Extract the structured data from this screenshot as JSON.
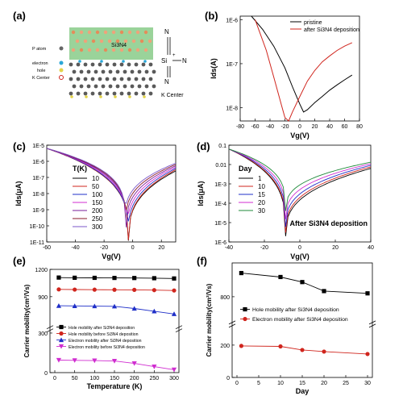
{
  "colors": {
    "black": "#000000",
    "red": "#d0251d",
    "blue": "#1f2fc8",
    "magenta": "#d02dd0",
    "green": "#1f8a3a",
    "purple": "#7a1f9a",
    "violet": "#7b57c9",
    "darkred": "#8a1a2a",
    "crystal": "#9ad39a"
  },
  "panel_a": {
    "label": "(a)",
    "layer_label": "Si3N4",
    "legend": [
      "P atom",
      "electron",
      "hole",
      "K Center"
    ],
    "k_center_label": "K Center",
    "defect_atoms": [
      "N",
      "N",
      "N",
      "Si",
      "+"
    ]
  },
  "chart_data": [
    {
      "id": "b",
      "panel": "(b)",
      "type": "line",
      "yscale": "log",
      "xlabel": "Vg(V)",
      "ylabel": "Ids(A)",
      "xlim": [
        -80,
        80
      ],
      "ylim": [
        5e-09,
        1.2e-06
      ],
      "xticks": [
        -80,
        -60,
        -40,
        -20,
        0,
        20,
        40,
        60,
        80
      ],
      "yticks": [
        {
          "v": 1e-06,
          "t": "1E-6"
        },
        {
          "v": 1e-07,
          "t": "1E-7"
        },
        {
          "v": 1e-08,
          "t": "1E-8"
        }
      ],
      "legend": "top-right",
      "series": [
        {
          "name": "pristine",
          "color": "#000000",
          "x": [
            -65,
            -50,
            -35,
            -20,
            -10,
            0,
            5,
            10,
            20,
            30,
            40,
            50,
            60,
            70
          ],
          "y": [
            1.2e-06,
            6e-07,
            2.5e-07,
            8e-08,
            3e-08,
            1.2e-08,
            8e-09,
            9e-09,
            1.3e-08,
            1.8e-08,
            2.5e-08,
            3.3e-08,
            4.3e-08,
            5.5e-08
          ]
        },
        {
          "name": "after Si3N4 deposition",
          "color": "#d0251d",
          "x": [
            -60,
            -45,
            -35,
            -25,
            -20,
            -15,
            -10,
            0,
            10,
            20,
            30,
            40,
            50,
            60,
            70
          ],
          "y": [
            1e-06,
            2e-07,
            5e-08,
            1.2e-08,
            6e-09,
            5e-09,
            8e-09,
            1.8e-08,
            4e-08,
            7e-08,
            1.1e-07,
            1.5e-07,
            2e-07,
            2.5e-07,
            3e-07
          ]
        }
      ]
    },
    {
      "id": "c",
      "panel": "(c)",
      "type": "line",
      "yscale": "log",
      "xlabel": "Vg(V)",
      "ylabel": "Ids(μA)",
      "xlim": [
        -60,
        30
      ],
      "ylim": [
        1e-11,
        1e-05
      ],
      "xticks": [
        -60,
        -40,
        -20,
        0,
        20
      ],
      "yticks": [
        {
          "v": 1e-05,
          "t": "1E-5"
        },
        {
          "v": 1e-06,
          "t": "1E-6"
        },
        {
          "v": 1e-07,
          "t": "1E-7"
        },
        {
          "v": 1e-08,
          "t": "1E-8"
        },
        {
          "v": 1e-09,
          "t": "1E-9"
        },
        {
          "v": 1e-10,
          "t": "1E-10"
        },
        {
          "v": 1e-11,
          "t": "1E-11"
        }
      ],
      "legend_title": "T(K)",
      "legend": "middle-left",
      "series": [
        {
          "name": "10",
          "color": "#000000",
          "vmin": -3.0,
          "depth": 1.2e-11
        },
        {
          "name": "50",
          "color": "#d0251d",
          "vmin": -3.0,
          "depth": 1.3e-11
        },
        {
          "name": "100",
          "color": "#1f2fc8",
          "vmin": -3.5,
          "depth": 2e-11
        },
        {
          "name": "150",
          "color": "#d02dd0",
          "vmin": -4.0,
          "depth": 4e-11
        },
        {
          "name": "200",
          "color": "#7a1f9a",
          "vmin": -4.5,
          "depth": 8e-11
        },
        {
          "name": "250",
          "color": "#8a1a2a",
          "vmin": -5.0,
          "depth": 1.5e-10
        },
        {
          "name": "300",
          "color": "#7b57c9",
          "vmin": -5.5,
          "depth": 2.5e-10
        }
      ]
    },
    {
      "id": "d",
      "panel": "(d)",
      "type": "line",
      "yscale": "log",
      "xlabel": "Vg(V)",
      "ylabel": "Ids(μA)",
      "xlim": [
        -40,
        40
      ],
      "ylim": [
        1e-06,
        0.1
      ],
      "xticks": [
        -40,
        -20,
        0,
        20,
        40
      ],
      "yticks": [
        {
          "v": 0.1,
          "t": "0.1"
        },
        {
          "v": 0.01,
          "t": "0.01"
        },
        {
          "v": 0.001,
          "t": "1E-3"
        },
        {
          "v": 0.0001,
          "t": "1E-4"
        },
        {
          "v": 1e-05,
          "t": "1E-5"
        },
        {
          "v": 1e-06,
          "t": "1E-6"
        }
      ],
      "legend_title": "Day",
      "legend": "middle-left",
      "annotation": "After Si3N4 deposition",
      "series": [
        {
          "name": "1",
          "color": "#000000",
          "vmin": -8,
          "depth": 2e-06
        },
        {
          "name": "10",
          "color": "#d0251d",
          "vmin": -8,
          "depth": 3e-06
        },
        {
          "name": "15",
          "color": "#1f2fc8",
          "vmin": -8,
          "depth": 6e-06
        },
        {
          "name": "20",
          "color": "#d02dd0",
          "vmin": -8,
          "depth": 1.5e-05
        },
        {
          "name": "30",
          "color": "#1f8a3a",
          "vmin": -8,
          "depth": 4e-05
        }
      ]
    },
    {
      "id": "e",
      "panel": "(e)",
      "type": "line",
      "xlabel": "Temperature (K)",
      "ylabel": "Carrier mobility(cm²/Vs)",
      "xlim": [
        0,
        300
      ],
      "xticks": [
        0,
        50,
        100,
        150,
        200,
        250,
        300
      ],
      "yticks_top": [
        {
          "v": 1200,
          "t": "1200"
        },
        {
          "v": 900,
          "t": "900"
        }
      ],
      "yticks_bottom": [
        {
          "v": 300,
          "t": "300"
        },
        {
          "v": 0,
          "t": "0"
        }
      ],
      "legend": "lower-left",
      "series": [
        {
          "name": "Hole mobility after Si3N4 deposition",
          "color": "#000000",
          "marker": "square",
          "x": [
            10,
            50,
            100,
            150,
            200,
            250,
            300
          ],
          "y": [
            1110,
            1108,
            1107,
            1106,
            1105,
            1103,
            1100
          ]
        },
        {
          "name": "Hole mobility before Si3N4 deposition",
          "color": "#d0251d",
          "marker": "circle",
          "x": [
            10,
            50,
            100,
            150,
            200,
            250,
            300
          ],
          "y": [
            980,
            978,
            977,
            976,
            975,
            972,
            968
          ]
        },
        {
          "name": "Electron mobility after Si3N4 deposition",
          "color": "#1f2fc8",
          "marker": "triangle-up",
          "x": [
            10,
            50,
            100,
            150,
            200,
            250,
            300
          ],
          "y": [
            800,
            798,
            796,
            794,
            770,
            740,
            710
          ]
        },
        {
          "name": "Electron mobility before Si3N4 deposition",
          "color": "#d02dd0",
          "marker": "triangle-down",
          "x": [
            10,
            50,
            100,
            150,
            200,
            250,
            300
          ],
          "y": [
            95,
            93,
            91,
            88,
            70,
            45,
            22
          ]
        }
      ]
    },
    {
      "id": "f",
      "panel": "(f)",
      "type": "line",
      "xlabel": "Day",
      "ylabel": "Carrier mobility(cm²/Vs)",
      "xlim": [
        0,
        30
      ],
      "xticks": [
        0,
        5,
        10,
        15,
        20,
        25,
        30
      ],
      "yticks_top": [
        {
          "v": 800,
          "t": "800"
        }
      ],
      "yticks_bottom": [
        {
          "v": 200,
          "t": "200"
        },
        {
          "v": 0,
          "t": "0"
        }
      ],
      "legend": "middle",
      "series": [
        {
          "name": "Hole mobility after Si3N4 deposition",
          "color": "#000000",
          "marker": "square",
          "x": [
            1,
            10,
            15,
            20,
            30
          ],
          "y": [
            1010,
            975,
            930,
            850,
            830
          ]
        },
        {
          "name": "Electron mobility after Si3N4 deposition",
          "color": "#d0251d",
          "marker": "circle",
          "x": [
            1,
            10,
            15,
            20,
            30
          ],
          "y": [
            195,
            192,
            170,
            160,
            145
          ]
        }
      ]
    }
  ]
}
